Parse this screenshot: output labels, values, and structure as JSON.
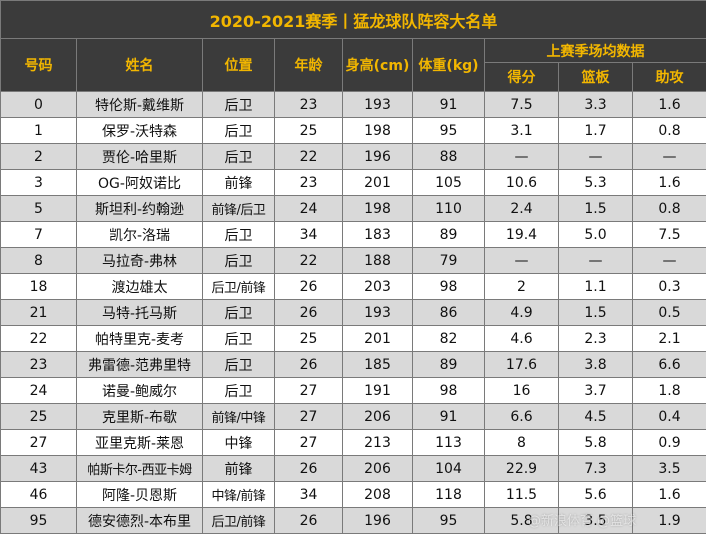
{
  "title": "2020-2021赛季丨猛龙球队阵容大名单",
  "headers": {
    "number": "号码",
    "name": "姓名",
    "position": "位置",
    "age": "年龄",
    "height": "身高(cm)",
    "weight": "体重(kg)",
    "stats_group": "上赛季场均数据",
    "points": "得分",
    "rebounds": "篮板",
    "assists": "助攻"
  },
  "players": [
    {
      "number": "0",
      "name": "特伦斯-戴维斯",
      "position": "后卫",
      "age": "23",
      "height": "193",
      "weight": "91",
      "points": "7.5",
      "rebounds": "3.3",
      "assists": "1.6"
    },
    {
      "number": "1",
      "name": "保罗-沃特森",
      "position": "后卫",
      "age": "25",
      "height": "198",
      "weight": "95",
      "points": "3.1",
      "rebounds": "1.7",
      "assists": "0.8"
    },
    {
      "number": "2",
      "name": "贾伦-哈里斯",
      "position": "后卫",
      "age": "22",
      "height": "196",
      "weight": "88",
      "points": "—",
      "rebounds": "—",
      "assists": "—"
    },
    {
      "number": "3",
      "name": "OG-阿奴诺比",
      "position": "前锋",
      "age": "23",
      "height": "201",
      "weight": "105",
      "points": "10.6",
      "rebounds": "5.3",
      "assists": "1.6"
    },
    {
      "number": "5",
      "name": "斯坦利-约翰逊",
      "position": "前锋/后卫",
      "age": "24",
      "height": "198",
      "weight": "110",
      "points": "2.4",
      "rebounds": "1.5",
      "assists": "0.8"
    },
    {
      "number": "7",
      "name": "凯尔-洛瑞",
      "position": "后卫",
      "age": "34",
      "height": "183",
      "weight": "89",
      "points": "19.4",
      "rebounds": "5.0",
      "assists": "7.5"
    },
    {
      "number": "8",
      "name": "马拉奇-弗林",
      "position": "后卫",
      "age": "22",
      "height": "188",
      "weight": "79",
      "points": "—",
      "rebounds": "—",
      "assists": "—"
    },
    {
      "number": "18",
      "name": "渡边雄太",
      "position": "后卫/前锋",
      "age": "26",
      "height": "203",
      "weight": "98",
      "points": "2",
      "rebounds": "1.1",
      "assists": "0.3"
    },
    {
      "number": "21",
      "name": "马特-托马斯",
      "position": "后卫",
      "age": "26",
      "height": "193",
      "weight": "86",
      "points": "4.9",
      "rebounds": "1.5",
      "assists": "0.5"
    },
    {
      "number": "22",
      "name": "帕特里克-麦考",
      "position": "后卫",
      "age": "25",
      "height": "201",
      "weight": "82",
      "points": "4.6",
      "rebounds": "2.3",
      "assists": "2.1"
    },
    {
      "number": "23",
      "name": "弗雷德-范弗里特",
      "position": "后卫",
      "age": "26",
      "height": "185",
      "weight": "89",
      "points": "17.6",
      "rebounds": "3.8",
      "assists": "6.6"
    },
    {
      "number": "24",
      "name": "诺曼-鲍威尔",
      "position": "后卫",
      "age": "27",
      "height": "191",
      "weight": "98",
      "points": "16",
      "rebounds": "3.7",
      "assists": "1.8"
    },
    {
      "number": "25",
      "name": "克里斯-布歇",
      "position": "前锋/中锋",
      "age": "27",
      "height": "206",
      "weight": "91",
      "points": "6.6",
      "rebounds": "4.5",
      "assists": "0.4"
    },
    {
      "number": "27",
      "name": "亚里克斯-莱恩",
      "position": "中锋",
      "age": "27",
      "height": "213",
      "weight": "113",
      "points": "8",
      "rebounds": "5.8",
      "assists": "0.9"
    },
    {
      "number": "43",
      "name": "帕斯卡尔-西亚卡姆",
      "position": "前锋",
      "age": "26",
      "height": "206",
      "weight": "104",
      "points": "22.9",
      "rebounds": "7.3",
      "assists": "3.5"
    },
    {
      "number": "46",
      "name": "阿隆-贝恩斯",
      "position": "中锋/前锋",
      "age": "34",
      "height": "208",
      "weight": "118",
      "points": "11.5",
      "rebounds": "5.6",
      "assists": "1.6"
    },
    {
      "number": "95",
      "name": "德安德烈-本布里",
      "position": "后卫/前锋",
      "age": "26",
      "height": "196",
      "weight": "95",
      "points": "5.8",
      "rebounds": "3.5",
      "assists": "1.9"
    }
  ],
  "watermark": "@新浪体育 @篮球"
}
